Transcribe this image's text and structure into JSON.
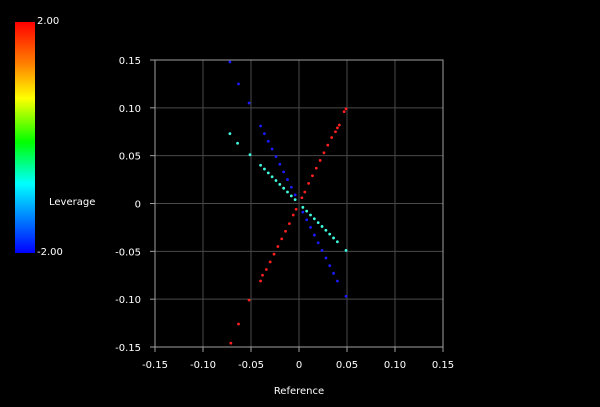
{
  "colorbar": {
    "label": "Leverage",
    "max_label": "2.00",
    "min_label": "-2.00",
    "colors": [
      "#ff0000",
      "#ff8000",
      "#ffff00",
      "#00ff00",
      "#00ffff",
      "#0080ff",
      "#0000ff"
    ]
  },
  "chart_data": {
    "type": "scatter",
    "title": "",
    "xlabel": "Reference",
    "ylabel": "",
    "xlim": [
      -0.15,
      0.15
    ],
    "ylim": [
      -0.15,
      0.15
    ],
    "grid": true,
    "xticks": [
      "-0.15",
      "-0.10",
      "-0.05",
      "0",
      "0.05",
      "0.10",
      "0.15"
    ],
    "yticks": [
      "0.15",
      "0.10",
      "0.05",
      "0",
      "-0.05",
      "-0.10",
      "-0.15"
    ],
    "series": [
      {
        "color": "#ff2020",
        "points": [
          [
            0.049,
            0.099
          ],
          [
            0.047,
            0.096
          ],
          [
            0.042,
            0.082
          ],
          [
            0.04,
            0.079
          ],
          [
            0.038,
            0.075
          ],
          [
            0.034,
            0.069
          ],
          [
            0.03,
            0.061
          ],
          [
            0.026,
            0.053
          ],
          [
            0.022,
            0.045
          ],
          [
            0.018,
            0.037
          ],
          [
            0.014,
            0.029
          ],
          [
            0.01,
            0.021
          ],
          [
            0.006,
            0.012
          ],
          [
            0.003,
            0.006
          ],
          [
            -0.003,
            -0.006
          ],
          [
            -0.006,
            -0.012
          ],
          [
            -0.01,
            -0.021
          ],
          [
            -0.014,
            -0.029
          ],
          [
            -0.018,
            -0.037
          ],
          [
            -0.022,
            -0.045
          ],
          [
            -0.026,
            -0.053
          ],
          [
            -0.03,
            -0.061
          ],
          [
            -0.034,
            -0.069
          ],
          [
            -0.038,
            -0.075
          ],
          [
            -0.04,
            -0.081
          ],
          [
            -0.052,
            -0.101
          ],
          [
            -0.063,
            -0.126
          ],
          [
            -0.071,
            -0.146
          ]
        ]
      },
      {
        "color": "#1a1aff",
        "points": [
          [
            -0.072,
            0.148
          ],
          [
            -0.063,
            0.125
          ],
          [
            -0.052,
            0.105
          ],
          [
            -0.04,
            0.081
          ],
          [
            -0.036,
            0.073
          ],
          [
            -0.032,
            0.065
          ],
          [
            -0.028,
            0.057
          ],
          [
            -0.024,
            0.049
          ],
          [
            -0.02,
            0.041
          ],
          [
            -0.016,
            0.033
          ],
          [
            -0.012,
            0.025
          ],
          [
            -0.008,
            0.017
          ],
          [
            -0.004,
            0.009
          ],
          [
            0.004,
            -0.009
          ],
          [
            0.008,
            -0.017
          ],
          [
            0.012,
            -0.025
          ],
          [
            0.016,
            -0.033
          ],
          [
            0.02,
            -0.041
          ],
          [
            0.024,
            -0.049
          ],
          [
            0.028,
            -0.057
          ],
          [
            0.032,
            -0.065
          ],
          [
            0.036,
            -0.073
          ],
          [
            0.04,
            -0.081
          ],
          [
            0.049,
            -0.097
          ]
        ]
      },
      {
        "color": "#40ffe0",
        "points": [
          [
            -0.072,
            0.073
          ],
          [
            -0.064,
            0.063
          ],
          [
            -0.051,
            0.051
          ],
          [
            -0.04,
            0.04
          ],
          [
            -0.036,
            0.036
          ],
          [
            -0.032,
            0.032
          ],
          [
            -0.028,
            0.028
          ],
          [
            -0.024,
            0.024
          ],
          [
            -0.02,
            0.02
          ],
          [
            -0.016,
            0.016
          ],
          [
            -0.012,
            0.012
          ],
          [
            -0.008,
            0.008
          ],
          [
            -0.004,
            0.004
          ],
          [
            0.004,
            -0.004
          ],
          [
            0.008,
            -0.008
          ],
          [
            0.012,
            -0.012
          ],
          [
            0.016,
            -0.016
          ],
          [
            0.02,
            -0.02
          ],
          [
            0.024,
            -0.024
          ],
          [
            0.028,
            -0.028
          ],
          [
            0.032,
            -0.032
          ],
          [
            0.036,
            -0.036
          ],
          [
            0.04,
            -0.04
          ],
          [
            0.049,
            -0.049
          ]
        ]
      }
    ]
  }
}
